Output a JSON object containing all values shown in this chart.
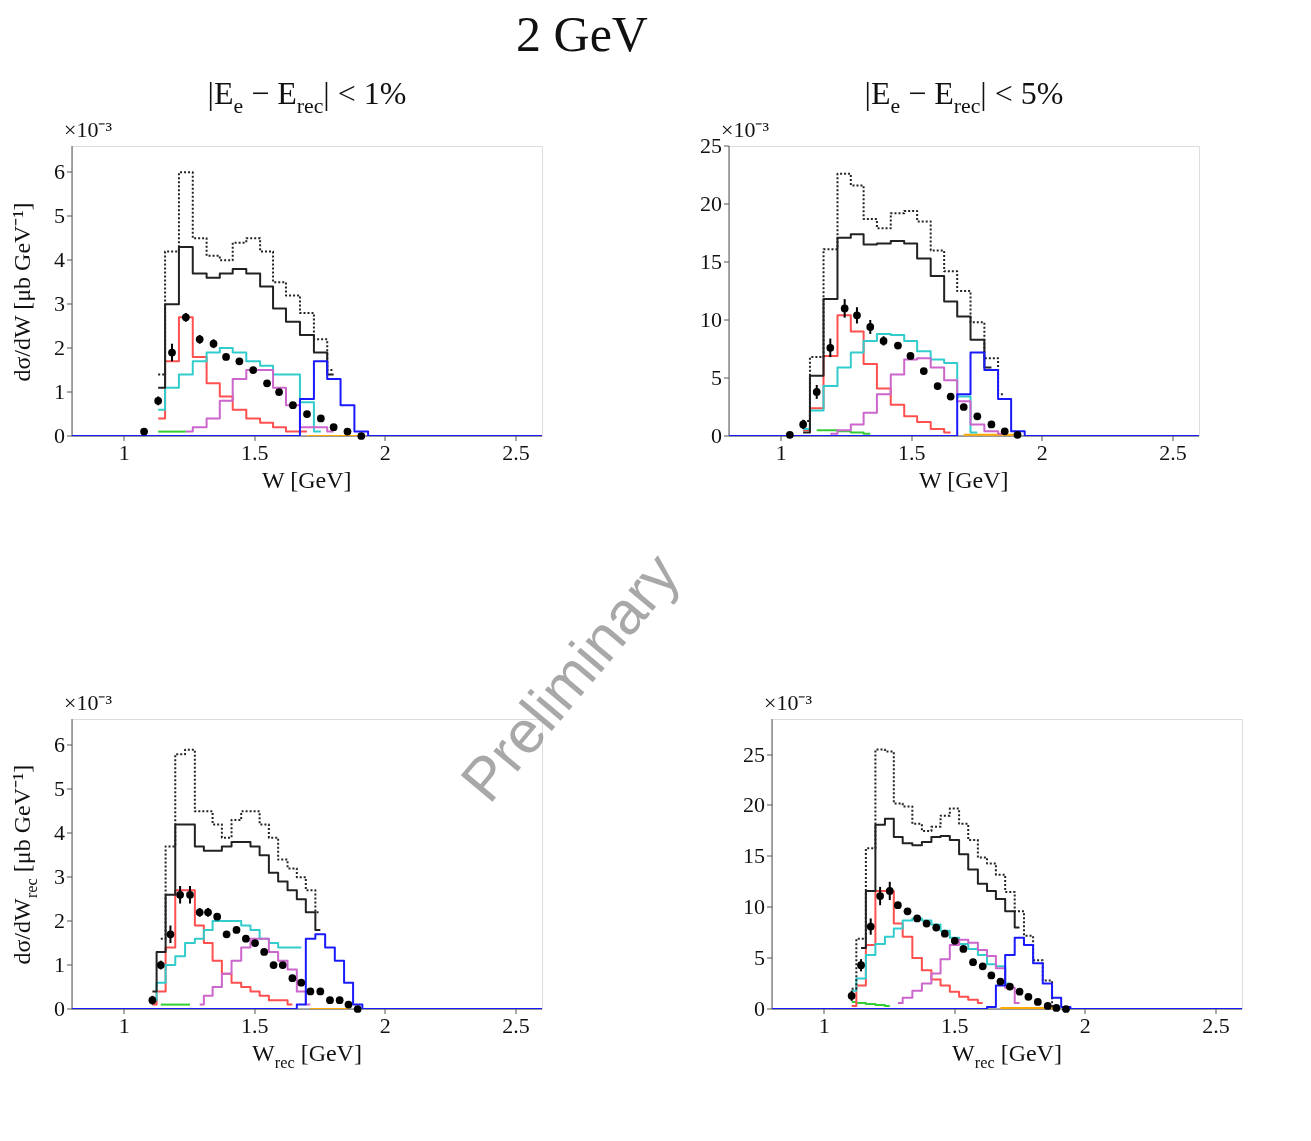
{
  "chart_data": [
    {
      "type": "step",
      "title": "2 GeV",
      "subtitle": "|E$_{e}$ − E$_{rec}$| < 1%",
      "xlabel": "W [GeV]",
      "ylabel": "dσ/dW [μb GeV⁻¹]",
      "annotations": [
        "×10⁻³"
      ],
      "x": [
        0.8,
        1.076,
        1.13,
        1.183,
        1.236,
        1.289,
        1.342,
        1.39,
        1.441,
        1.494,
        1.547,
        1.593,
        1.646,
        1.7,
        1.753,
        1.802,
        1.855,
        1.908,
        1.96,
        2.6
      ],
      "xlim": [
        0.8,
        2.6
      ],
      "xticks": [
        1,
        1.5,
        2,
        2.5
      ],
      "ylim": [
        0,
        6.6
      ],
      "yticks": [
        0,
        1,
        2,
        3,
        4,
        5,
        6
      ],
      "series": [
        {
          "color": "#33cc33",
          "values": [
            null,
            null,
            0.1,
            0.1,
            0.1,
            null,
            null,
            null,
            null,
            null,
            null,
            null,
            null,
            null,
            null,
            null,
            null,
            null,
            null,
            null
          ]
        },
        {
          "color": "#ffaa00",
          "values": [
            null,
            null,
            null,
            null,
            null,
            null,
            null,
            null,
            null,
            null,
            null,
            null,
            null,
            0,
            0,
            0,
            0,
            0,
            null,
            null
          ]
        },
        {
          "color": "#ff5050",
          "values": [
            null,
            null,
            0.4,
            1.7,
            2.7,
            1.8,
            1.2,
            0.9,
            0.6,
            0.4,
            0.3,
            0.2,
            0.1,
            0.1,
            null,
            null,
            null,
            null,
            null,
            null
          ]
        },
        {
          "color": "#33cccc",
          "values": [
            null,
            null,
            0.6,
            1.1,
            1.4,
            1.7,
            1.9,
            2.0,
            1.9,
            1.7,
            1.6,
            1.4,
            1.4,
            0.77,
            0.1,
            null,
            null,
            null,
            null,
            null
          ]
        },
        {
          "color": "#cc66cc",
          "values": [
            null,
            null,
            null,
            null,
            0.1,
            0.2,
            0.4,
            0.8,
            1.3,
            1.5,
            1.5,
            1.1,
            0.7,
            0.2,
            0.2,
            0.1,
            null,
            null,
            null,
            null
          ]
        },
        {
          "color": "#222222",
          "line_style": "dotted",
          "values": [
            null,
            null,
            1.4,
            4.2,
            6.0,
            4.5,
            4.1,
            4.0,
            4.4,
            4.5,
            4.2,
            3.5,
            3.2,
            2.8,
            2.2,
            1.5,
            null,
            null,
            null,
            null
          ]
        },
        {
          "color": "#222222",
          "line_style": "solid",
          "values": [
            null,
            null,
            1.1,
            3.0,
            4.3,
            3.7,
            3.6,
            3.7,
            3.8,
            3.7,
            3.4,
            2.9,
            2.6,
            2.3,
            1.9,
            1.4,
            null,
            null,
            null,
            null
          ]
        },
        {
          "color": "#1a1aff",
          "values": [
            0,
            0,
            0,
            0,
            0,
            0,
            0,
            0,
            0,
            0,
            0,
            0,
            0,
            0.84,
            1.7,
            1.3,
            0.7,
            0.1,
            0,
            0
          ]
        },
        {
          "type": "scatter",
          "color": "#000000",
          "marker": "circle",
          "x": [
            1.076,
            1.13,
            1.183,
            1.236,
            1.289,
            1.342,
            1.39,
            1.441,
            1.494,
            1.547,
            1.593,
            1.646,
            1.7,
            1.753,
            1.802,
            1.855,
            1.908
          ],
          "values": [
            0.1,
            0.8,
            1.9,
            2.7,
            2.2,
            2.1,
            1.8,
            1.7,
            1.5,
            1.2,
            1.0,
            0.7,
            0.5,
            0.4,
            0.2,
            0.1,
            0.0
          ],
          "errors": [
            null,
            0.1,
            0.2,
            0.1,
            0.1,
            0.1,
            null,
            null,
            null,
            null,
            null,
            null,
            null,
            null,
            null,
            null,
            null
          ]
        }
      ]
    },
    {
      "type": "step",
      "subtitle": "|E$_{e}$ − E$_{rec}$| < 5%",
      "xlabel": "W [GeV]",
      "annotations": [
        "×10⁻³"
      ],
      "x": [
        0.8,
        1.033,
        1.084,
        1.136,
        1.188,
        1.243,
        1.29,
        1.341,
        1.392,
        1.447,
        1.495,
        1.546,
        1.599,
        1.649,
        1.699,
        1.751,
        1.805,
        1.856,
        1.905,
        1.96,
        2.6
      ],
      "xlim": [
        0.8,
        2.6
      ],
      "xticks": [
        1,
        1.5,
        2,
        2.5
      ],
      "ylim": [
        0,
        25
      ],
      "yticks": [
        0,
        5,
        10,
        15,
        20,
        25
      ],
      "series": [
        {
          "color": "#33cc33",
          "values": [
            null,
            null,
            null,
            0.5,
            0.5,
            0.4,
            0.3,
            0.2,
            null,
            null,
            null,
            null,
            null,
            null,
            null,
            null,
            null,
            null,
            null,
            null,
            null
          ]
        },
        {
          "color": "#ffaa00",
          "values": [
            null,
            null,
            null,
            null,
            null,
            null,
            null,
            null,
            null,
            null,
            null,
            null,
            null,
            null,
            0.1,
            0.1,
            0.1,
            0.1,
            0.1,
            null,
            null
          ]
        },
        {
          "color": "#ff5050",
          "values": [
            null,
            null,
            0.5,
            2.4,
            6.9,
            10.4,
            9.0,
            6.2,
            4.1,
            2.7,
            1.7,
            1.2,
            0.6,
            0.3,
            null,
            null,
            null,
            null,
            null,
            null,
            null
          ]
        },
        {
          "color": "#33cccc",
          "values": [
            null,
            null,
            0.6,
            2.2,
            4.3,
            5.9,
            7.2,
            8.2,
            8.8,
            8.7,
            8.2,
            7.3,
            6.6,
            6.3,
            3.4,
            0.3,
            null,
            null,
            null,
            null,
            null
          ]
        },
        {
          "color": "#cc66cc",
          "values": [
            null,
            null,
            null,
            null,
            0.2,
            0.5,
            1.0,
            2.0,
            3.6,
            5.3,
            6.6,
            6.7,
            5.9,
            4.8,
            3.0,
            1.0,
            0.4,
            0.2,
            null,
            null,
            null
          ]
        },
        {
          "color": "#222222",
          "line_style": "dotted",
          "values": [
            null,
            null,
            1.3,
            6.8,
            16.1,
            22.6,
            21.6,
            18.7,
            17.9,
            19.2,
            19.4,
            18.5,
            16.0,
            14.2,
            12.5,
            9.8,
            6.7,
            3.6,
            null,
            null,
            null
          ]
        },
        {
          "color": "#222222",
          "line_style": "solid",
          "values": [
            null,
            null,
            0.3,
            5.2,
            11.8,
            17.1,
            17.4,
            16.5,
            16.6,
            16.8,
            16.6,
            15.3,
            13.8,
            11.6,
            10.3,
            8.3,
            5.9,
            null,
            null,
            null,
            null
          ]
        },
        {
          "color": "#1a1aff",
          "values": [
            0,
            0,
            0,
            0,
            0,
            0,
            0,
            0,
            0,
            0,
            0,
            0,
            0,
            0,
            3.6,
            7.2,
            5.7,
            3.2,
            0.4,
            0,
            0
          ]
        },
        {
          "type": "scatter",
          "color": "#000000",
          "marker": "circle",
          "x": [
            1.033,
            1.084,
            1.136,
            1.188,
            1.243,
            1.29,
            1.341,
            1.392,
            1.447,
            1.495,
            1.546,
            1.599,
            1.649,
            1.699,
            1.751,
            1.805,
            1.856,
            1.905
          ],
          "values": [
            0.1,
            1.0,
            3.8,
            7.6,
            11.0,
            10.4,
            9.4,
            8.2,
            7.8,
            6.9,
            5.6,
            4.3,
            3.4,
            2.5,
            1.7,
            1.0,
            0.4,
            0.1
          ],
          "errors": [
            null,
            0.4,
            0.6,
            0.8,
            0.8,
            0.7,
            0.6,
            0.4,
            null,
            null,
            null,
            null,
            null,
            null,
            null,
            null,
            null,
            null
          ]
        }
      ]
    },
    {
      "type": "step",
      "xlabel": "W$_{rec}$ [GeV]",
      "ylabel": "dσ/dW$_{rec}$ [μb GeV⁻¹]",
      "annotations": [
        "×10⁻³",
        "Preliminary"
      ],
      "x": [
        0.8,
        1.108,
        1.14,
        1.177,
        1.214,
        1.252,
        1.289,
        1.321,
        1.356,
        1.392,
        1.43,
        1.466,
        1.501,
        1.536,
        1.572,
        1.607,
        1.644,
        1.678,
        1.713,
        1.751,
        1.788,
        1.825,
        1.859,
        1.894,
        1.93,
        2.6
      ],
      "xlim": [
        0.8,
        2.6
      ],
      "xticks": [
        1,
        1.5,
        2,
        2.5
      ],
      "ylim": [
        0,
        6.6
      ],
      "yticks": [
        0,
        1,
        2,
        3,
        4,
        5,
        6
      ],
      "series": [
        {
          "color": "#33cc33",
          "values": [
            null,
            null,
            0.1,
            0.1,
            0.1,
            0.1,
            null,
            null,
            null,
            null,
            null,
            null,
            null,
            null,
            null,
            null,
            null,
            null,
            null,
            null,
            null,
            null,
            null,
            null,
            null,
            null
          ]
        },
        {
          "color": "#ffaa00",
          "values": [
            null,
            null,
            null,
            null,
            null,
            null,
            null,
            null,
            null,
            null,
            null,
            null,
            null,
            null,
            null,
            null,
            null,
            null,
            0,
            0,
            0,
            0,
            0,
            null,
            null,
            null
          ]
        },
        {
          "color": "#ff5050",
          "values": [
            null,
            0.1,
            0.4,
            1.4,
            2.7,
            2.7,
            1.9,
            1.5,
            1.1,
            0.8,
            0.6,
            0.5,
            0.4,
            0.3,
            0.2,
            0.2,
            0.1,
            null,
            null,
            null,
            null,
            null,
            null,
            null,
            null,
            null
          ]
        },
        {
          "color": "#33cccc",
          "values": [
            null,
            0.2,
            0.6,
            1.0,
            1.2,
            1.5,
            1.6,
            1.8,
            2.0,
            2.0,
            2.0,
            1.9,
            1.8,
            1.6,
            1.5,
            1.4,
            1.4,
            1.4,
            null,
            null,
            null,
            null,
            null,
            null,
            null,
            null
          ]
        },
        {
          "color": "#cc66cc",
          "values": [
            null,
            null,
            null,
            null,
            null,
            null,
            0.1,
            0.3,
            0.5,
            0.8,
            1.1,
            1.4,
            1.6,
            1.6,
            1.3,
            1.1,
            0.9,
            0.4,
            0.1,
            null,
            null,
            null,
            null,
            null,
            null,
            null
          ]
        },
        {
          "color": "#222222",
          "line_style": "dotted",
          "values": [
            null,
            null,
            1.6,
            3.7,
            5.8,
            5.9,
            4.5,
            4.5,
            4.2,
            3.9,
            4.3,
            4.5,
            4.5,
            4.2,
            3.9,
            3.4,
            3.2,
            3.0,
            2.7,
            2.2,
            null,
            null,
            null,
            null,
            null,
            null
          ]
        },
        {
          "color": "#222222",
          "line_style": "solid",
          "values": [
            null,
            0.4,
            1.3,
            2.6,
            4.2,
            4.2,
            3.7,
            3.6,
            3.6,
            3.7,
            3.8,
            3.8,
            3.7,
            3.5,
            3.1,
            2.9,
            2.7,
            2.5,
            2.2,
            1.8,
            null,
            null,
            null,
            null,
            null,
            null
          ]
        },
        {
          "color": "#1a1aff",
          "values": [
            0,
            0,
            0,
            0,
            0,
            0,
            0,
            0,
            0,
            0,
            0,
            0,
            0,
            0,
            0,
            0,
            0,
            0.1,
            1.6,
            1.7,
            1.4,
            1.1,
            0.6,
            0.1,
            0,
            0
          ]
        },
        {
          "type": "scatter",
          "color": "#000000",
          "marker": "circle",
          "x": [
            1.108,
            1.14,
            1.177,
            1.214,
            1.252,
            1.289,
            1.321,
            1.356,
            1.392,
            1.43,
            1.466,
            1.501,
            1.536,
            1.572,
            1.607,
            1.644,
            1.678,
            1.713,
            1.751,
            1.788,
            1.825,
            1.859,
            1.894
          ],
          "values": [
            0.2,
            1.0,
            1.7,
            2.6,
            2.6,
            2.2,
            2.2,
            2.1,
            1.7,
            1.8,
            1.6,
            1.5,
            1.3,
            1.0,
            1.0,
            0.7,
            0.6,
            0.4,
            0.4,
            0.2,
            0.2,
            0.1,
            0.0
          ],
          "errors": [
            0.1,
            0.1,
            0.2,
            0.2,
            0.2,
            0.1,
            0.1,
            null,
            null,
            null,
            null,
            null,
            null,
            null,
            null,
            null,
            null,
            null,
            null,
            null,
            null,
            null,
            null
          ]
        }
      ]
    },
    {
      "type": "step",
      "xlabel": "W$_{rec}$ [GeV]",
      "annotations": [
        "×10⁻³"
      ],
      "x": [
        0.8,
        1.105,
        1.141,
        1.178,
        1.214,
        1.251,
        1.282,
        1.319,
        1.356,
        1.392,
        1.429,
        1.462,
        1.5,
        1.533,
        1.57,
        1.607,
        1.64,
        1.675,
        1.711,
        1.748,
        1.782,
        1.818,
        1.856,
        1.889,
        1.926,
        1.96,
        2.6
      ],
      "xlim": [
        0.8,
        2.6
      ],
      "xticks": [
        1,
        1.5,
        2,
        2.5
      ],
      "ylim": [
        0,
        28.5
      ],
      "yticks": [
        0,
        5,
        10,
        15,
        20,
        25
      ],
      "series": [
        {
          "color": "#33cc33",
          "values": [
            null,
            0.7,
            0.6,
            0.5,
            0.4,
            0.3,
            null,
            null,
            null,
            null,
            null,
            null,
            null,
            null,
            null,
            null,
            null,
            null,
            null,
            null,
            null,
            null,
            null,
            null,
            null,
            null,
            null
          ]
        },
        {
          "color": "#ffaa00",
          "values": [
            null,
            null,
            null,
            null,
            null,
            null,
            null,
            null,
            null,
            null,
            null,
            null,
            null,
            null,
            null,
            null,
            null,
            0.1,
            0.1,
            0.1,
            0.1,
            0.1,
            0.1,
            0.1,
            null,
            null,
            null
          ]
        },
        {
          "color": "#ff5050",
          "values": [
            null,
            0.3,
            2.3,
            6.3,
            11.6,
            11.6,
            8.4,
            7.1,
            5.0,
            3.8,
            2.9,
            2.3,
            1.7,
            1.2,
            0.9,
            0.6,
            null,
            null,
            null,
            null,
            null,
            null,
            null,
            null,
            null,
            null,
            null
          ]
        },
        {
          "color": "#33cccc",
          "values": [
            null,
            1.8,
            3.0,
            5.3,
            6.4,
            7.1,
            7.9,
            8.7,
            8.9,
            8.7,
            8.3,
            7.7,
            7.0,
            6.4,
            5.9,
            5.3,
            4.4,
            4.2,
            2.5,
            null,
            null,
            null,
            null,
            null,
            null,
            null,
            null
          ]
        },
        {
          "color": "#cc66cc",
          "values": [
            null,
            null,
            null,
            null,
            null,
            null,
            0.6,
            1.1,
            1.8,
            2.5,
            3.5,
            4.9,
            6.3,
            6.8,
            6.5,
            5.8,
            5.2,
            4.0,
            2.1,
            0.6,
            null,
            null,
            null,
            null,
            null,
            null,
            null
          ]
        },
        {
          "color": "#222222",
          "line_style": "dotted",
          "values": [
            null,
            2.0,
            6.9,
            15.8,
            25.5,
            25.3,
            20.2,
            19.9,
            18.2,
            17.5,
            17.9,
            19.0,
            19.7,
            18.2,
            16.6,
            14.9,
            14.3,
            13.2,
            11.5,
            9.6,
            7.2,
            4.8,
            2.8,
            0.3,
            null,
            null,
            null
          ]
        },
        {
          "color": "#222222",
          "line_style": "solid",
          "values": [
            null,
            null,
            6.0,
            11.6,
            18.1,
            18.7,
            16.9,
            16.3,
            16.1,
            16.4,
            16.9,
            17.0,
            16.6,
            15.2,
            13.7,
            12.3,
            11.6,
            10.8,
            9.6,
            8.0,
            null,
            null,
            null,
            null,
            null,
            null,
            null
          ]
        },
        {
          "color": "#1a1aff",
          "values": [
            0,
            0,
            0,
            0,
            0,
            0,
            0,
            0,
            0,
            0,
            0,
            0,
            0,
            0,
            0,
            0,
            0.2,
            2.3,
            5.3,
            7.0,
            6.3,
            4.5,
            2.5,
            1.1,
            0.2,
            0,
            0
          ]
        },
        {
          "type": "scatter",
          "color": "#000000",
          "marker": "circle",
          "x": [
            1.105,
            1.141,
            1.178,
            1.214,
            1.251,
            1.282,
            1.319,
            1.356,
            1.392,
            1.429,
            1.462,
            1.5,
            1.533,
            1.57,
            1.607,
            1.64,
            1.675,
            1.711,
            1.748,
            1.782,
            1.818,
            1.856,
            1.889,
            1.926
          ],
          "values": [
            1.3,
            4.3,
            8.1,
            11.1,
            11.6,
            10.2,
            9.6,
            8.9,
            8.4,
            8.0,
            7.4,
            6.7,
            5.9,
            4.6,
            4.2,
            3.3,
            2.7,
            2.2,
            1.7,
            1.2,
            0.7,
            0.3,
            0.1,
            0
          ],
          "errors": [
            0.5,
            0.6,
            0.8,
            0.9,
            0.9,
            null,
            null,
            null,
            null,
            null,
            null,
            null,
            null,
            null,
            null,
            null,
            null,
            null,
            null,
            null,
            null,
            null,
            null,
            null
          ]
        }
      ]
    }
  ]
}
